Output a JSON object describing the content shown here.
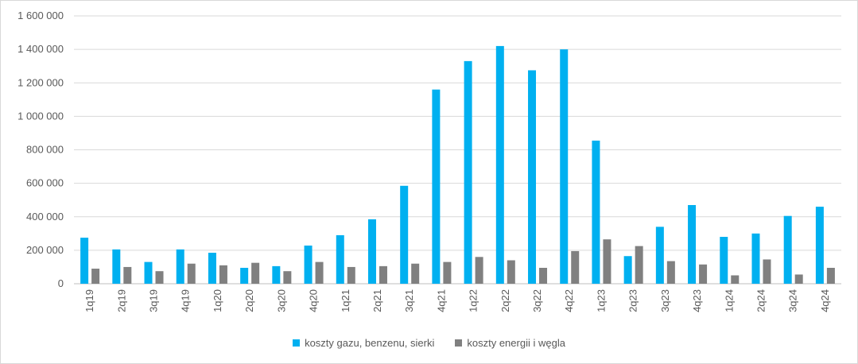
{
  "chart_data": {
    "type": "bar",
    "title": "",
    "xlabel": "",
    "ylabel": "",
    "ylim": [
      0,
      1600000
    ],
    "yticks": [
      0,
      200000,
      400000,
      600000,
      800000,
      1000000,
      1200000,
      1400000,
      1600000
    ],
    "ytick_labels": [
      "0",
      "200 000",
      "400 000",
      "600 000",
      "800 000",
      "1 000 000",
      "1 200 000",
      "1 400 000",
      "1 600 000"
    ],
    "grid": true,
    "legend_position": "bottom",
    "categories": [
      "1q19",
      "2q19",
      "3q19",
      "4q19",
      "1q20",
      "2q20",
      "3q20",
      "4q20",
      "1q21",
      "2q21",
      "3q21",
      "4q21",
      "1q22",
      "2q22",
      "3q22",
      "4q22",
      "1q23",
      "2q23",
      "3q23",
      "4q23",
      "1q24",
      "2q24",
      "3q24",
      "4q24"
    ],
    "series": [
      {
        "name": "koszty gazu, benzenu, sierki",
        "color": "#00b0f0",
        "values": [
          275000,
          205000,
          130000,
          205000,
          185000,
          95000,
          105000,
          228000,
          290000,
          385000,
          585000,
          1160000,
          1330000,
          1420000,
          1275000,
          1400000,
          855000,
          165000,
          340000,
          470000,
          280000,
          300000,
          405000,
          460000
        ]
      },
      {
        "name": "koszty energii i węgla",
        "color": "#808080",
        "values": [
          90000,
          100000,
          75000,
          120000,
          110000,
          125000,
          75000,
          130000,
          100000,
          105000,
          120000,
          130000,
          160000,
          140000,
          95000,
          195000,
          265000,
          225000,
          135000,
          115000,
          50000,
          145000,
          55000,
          95000
        ]
      }
    ]
  }
}
